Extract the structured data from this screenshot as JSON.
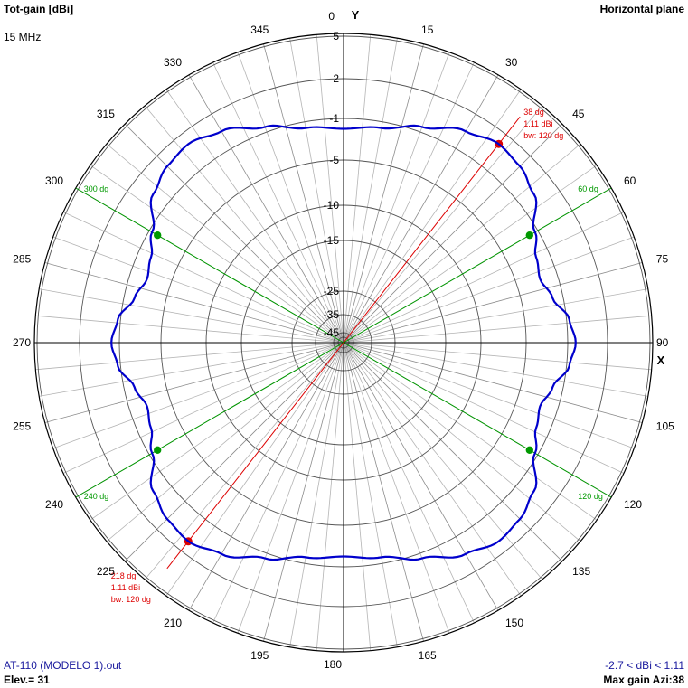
{
  "header": {
    "title_left": "Tot-gain [dBi]",
    "title_right": "Horizontal plane",
    "frequency": "15 MHz"
  },
  "footer": {
    "file": "AT-110 (MODELO 1).out",
    "elevation": "Elev.= 31",
    "range": "-2.7 < dBi < 1.11",
    "max_gain": "Max gain Azi:38"
  },
  "colors": {
    "pattern": "#0000cc",
    "max_marker": "#dd0000",
    "beamwidth_marker": "#009900",
    "grid": "#b4b4b4",
    "axis": "#000000"
  },
  "chart_data": {
    "type": "polar",
    "axis_labels": {
      "y": "Y",
      "x": "X"
    },
    "azimuth_labels": [
      "0",
      "15",
      "30",
      "45",
      "60",
      "75",
      "90",
      "105",
      "120",
      "135",
      "150",
      "165",
      "180",
      "195",
      "210",
      "225",
      "240",
      "255",
      "270",
      "285",
      "300",
      "315",
      "330",
      "345"
    ],
    "gain_ticks": [
      "5",
      "2",
      "-1",
      "-5",
      "-10",
      "-15",
      "-25",
      "-35",
      "-45"
    ],
    "gain_tick_values": [
      5,
      2,
      -1,
      -5,
      -10,
      -15,
      -25,
      -35,
      -45
    ],
    "series": [
      {
        "azimuth_deg": [
          0,
          10,
          20,
          30,
          38,
          45,
          52,
          60,
          66,
          72,
          78,
          84,
          90,
          96,
          102,
          108,
          114,
          120,
          128,
          135,
          142,
          150,
          160,
          170,
          180,
          190,
          200,
          210,
          218,
          225,
          232,
          240,
          246,
          252,
          258,
          264,
          270,
          276,
          282,
          288,
          294,
          300,
          308,
          315,
          322,
          330,
          340,
          350
        ],
        "gain_dbi": [
          -2.0,
          -1.6,
          -0.6,
          0.5,
          1.1,
          0.9,
          0.3,
          -1.3,
          -2.3,
          -2.7,
          -2.0,
          -0.8,
          -0.4,
          -0.8,
          -2.0,
          -2.7,
          -2.3,
          -1.3,
          0.3,
          0.9,
          1.1,
          0.5,
          -0.6,
          -1.6,
          -2.0,
          -1.6,
          -0.6,
          0.5,
          1.1,
          0.9,
          0.3,
          -1.3,
          -2.3,
          -2.7,
          -2.0,
          -0.8,
          -0.4,
          -0.8,
          -2.0,
          -2.7,
          -2.3,
          -1.3,
          0.3,
          0.9,
          1.1,
          0.5,
          -0.6,
          -1.6
        ]
      }
    ],
    "max_gain_markers": [
      {
        "azimuth": 38,
        "angle_label": "38 dg",
        "gain_label": "1.11 dBi",
        "bw_label": "bw: 120 dg"
      },
      {
        "azimuth": 218,
        "angle_label": "218 dg",
        "gain_label": "1.11 dBi",
        "bw_label": "bw: 120 dg"
      }
    ],
    "beamwidth_markers": [
      {
        "azimuth": 60,
        "label": "60 dg"
      },
      {
        "azimuth": 120,
        "label": "120 dg"
      },
      {
        "azimuth": 240,
        "label": "240 dg"
      },
      {
        "azimuth": 300,
        "label": "300 dg"
      }
    ],
    "beamwidth_marker_gain_dbi": -1.9
  }
}
